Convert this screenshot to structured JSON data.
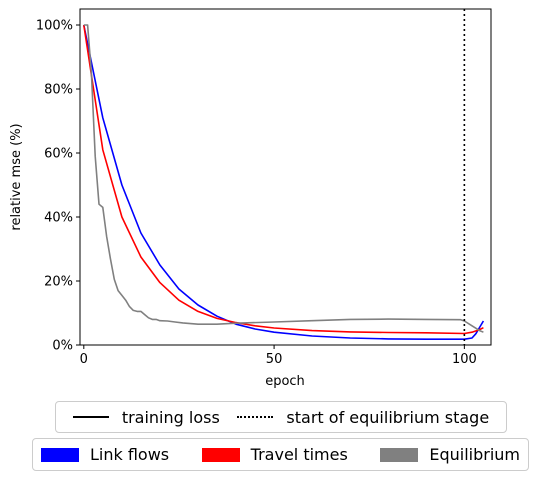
{
  "chart_data": {
    "type": "line",
    "xlabel": "epoch",
    "ylabel": "relative mse (%)",
    "xlim": [
      -1,
      107
    ],
    "ylim": [
      0,
      105
    ],
    "x_ticks": [
      0,
      50,
      100
    ],
    "y_ticks": [
      0,
      20,
      40,
      60,
      80,
      100
    ],
    "y_tick_format": "%",
    "grid": false,
    "vline": {
      "x": 100,
      "style": "dotted",
      "color": "#000000"
    },
    "series": [
      {
        "name": "Link flows",
        "color": "#0000ff",
        "x": [
          0,
          5,
          10,
          15,
          20,
          25,
          30,
          35,
          40,
          45,
          50,
          60,
          70,
          80,
          90,
          100,
          102,
          103,
          104,
          105
        ],
        "y": [
          100,
          71,
          50,
          35,
          25,
          17.5,
          12.5,
          9,
          6.5,
          5,
          4,
          2.8,
          2.2,
          1.9,
          1.8,
          1.8,
          2.2,
          3.5,
          5.5,
          7.5
        ]
      },
      {
        "name": "Travel times",
        "color": "#ff0000",
        "x": [
          0,
          5,
          10,
          15,
          20,
          25,
          30,
          35,
          40,
          45,
          50,
          60,
          70,
          80,
          90,
          100,
          102,
          104,
          105
        ],
        "y": [
          100,
          61,
          40,
          27.5,
          19.5,
          14,
          10.5,
          8.3,
          7,
          6,
          5.3,
          4.5,
          4.1,
          3.9,
          3.8,
          3.6,
          4,
          4.8,
          5.4
        ]
      },
      {
        "name": "Equilibrium",
        "color": "#808080",
        "x": [
          0,
          1,
          2,
          3,
          4,
          5,
          6,
          7,
          8,
          9,
          10,
          11,
          12,
          13,
          14,
          15,
          16,
          17,
          18,
          19,
          20,
          22,
          24,
          26,
          30,
          35,
          40,
          50,
          60,
          70,
          80,
          90,
          99,
          100,
          102,
          104,
          105
        ],
        "y": [
          100,
          100,
          85,
          59,
          44,
          43,
          34,
          27,
          20.5,
          17,
          15.5,
          14,
          12,
          10.8,
          10.5,
          10.5,
          9.5,
          8.5,
          8,
          8,
          7.6,
          7.5,
          7.2,
          6.9,
          6.5,
          6.5,
          6.8,
          7.2,
          7.6,
          8,
          8.1,
          8,
          7.9,
          7.5,
          6,
          4.5,
          4
        ]
      }
    ],
    "legends": [
      {
        "placement": "bottom",
        "entries": [
          {
            "label": "training loss",
            "style": "solid",
            "color": "#000000"
          },
          {
            "label": "start of equilibrium stage",
            "style": "dotted",
            "color": "#000000"
          }
        ]
      },
      {
        "placement": "bottom",
        "entries": [
          {
            "label": "Link flows",
            "style": "patch",
            "color": "#0000ff"
          },
          {
            "label": "Travel times",
            "style": "patch",
            "color": "#ff0000"
          },
          {
            "label": "Equilibrium",
            "style": "patch",
            "color": "#808080"
          }
        ]
      }
    ]
  }
}
